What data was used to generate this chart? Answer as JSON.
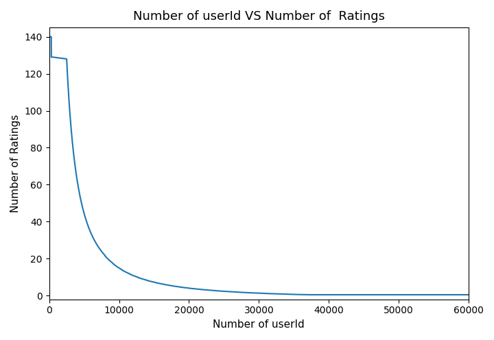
{
  "title": "Number of userId VS Number of  Ratings",
  "xlabel": "Number of userId",
  "ylabel": "Number of Ratings",
  "line_color": "#1f77b4",
  "line_width": 1.5,
  "xlim": [
    0,
    60000
  ],
  "ylim": [
    -2,
    145
  ],
  "xticks": [
    0,
    10000,
    20000,
    30000,
    40000,
    50000,
    60000
  ],
  "yticks": [
    0,
    20,
    40,
    60,
    80,
    100,
    120,
    140
  ],
  "figsize": [
    7.2,
    4.96
  ],
  "dpi": 100,
  "background_color": "#ffffff"
}
